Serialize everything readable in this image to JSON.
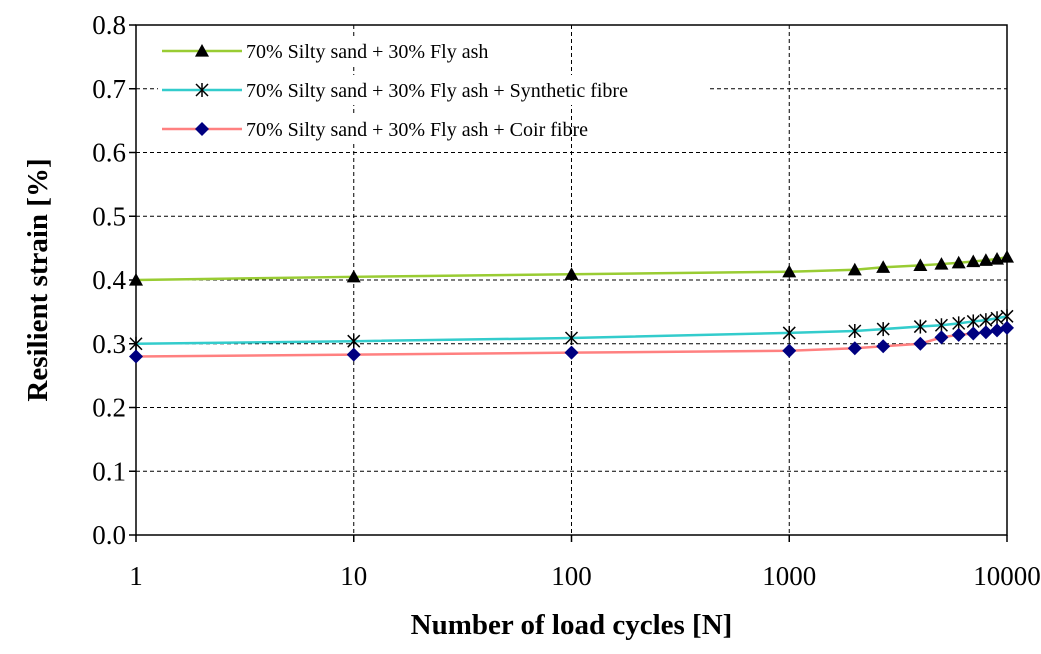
{
  "chart_data": {
    "type": "line",
    "xscale": "log",
    "xlabel": "Number of load cycles [N]",
    "ylabel": "Resilient strain [%]",
    "xlim": [
      1,
      10000
    ],
    "ylim": [
      0,
      0.8
    ],
    "grid": true,
    "legend_position": "top-left",
    "xticks": [
      1,
      10,
      100,
      1000,
      10000
    ],
    "xtick_labels": [
      "1",
      "10",
      "100",
      "1000",
      "10000"
    ],
    "yticks": [
      0,
      0.1,
      0.2,
      0.3,
      0.4,
      0.5,
      0.6,
      0.7,
      0.8
    ],
    "ytick_labels": [
      "0.0",
      "0.1",
      "0.2",
      "0.3",
      "0.4",
      "0.5",
      "0.6",
      "0.7",
      "0.8"
    ],
    "series": [
      {
        "name": "70% Silty sand + 30% Fly ash",
        "color": "#99cc33",
        "marker": "triangle",
        "x": [
          1,
          10,
          100,
          1000,
          2000,
          2700,
          4000,
          5000,
          6000,
          7000,
          8000,
          9000,
          10000
        ],
        "y": [
          0.4,
          0.405,
          0.409,
          0.413,
          0.416,
          0.42,
          0.423,
          0.425,
          0.427,
          0.429,
          0.431,
          0.433,
          0.436
        ]
      },
      {
        "name": "70% Silty sand + 30% Fly ash + Synthetic fibre",
        "color": "#33cccc",
        "marker": "asterisk",
        "x": [
          1,
          10,
          100,
          1000,
          2000,
          2700,
          4000,
          5000,
          6000,
          7000,
          8000,
          9000,
          10000
        ],
        "y": [
          0.3,
          0.304,
          0.309,
          0.317,
          0.32,
          0.323,
          0.327,
          0.329,
          0.332,
          0.335,
          0.337,
          0.34,
          0.343
        ]
      },
      {
        "name": "70% Silty sand + 30% Fly ash + Coir fibre",
        "color": "#ff8080",
        "marker": "diamond",
        "x": [
          1,
          10,
          100,
          1000,
          2000,
          2700,
          4000,
          5000,
          6000,
          7000,
          8000,
          9000,
          10000
        ],
        "y": [
          0.28,
          0.283,
          0.286,
          0.289,
          0.293,
          0.296,
          0.3,
          0.31,
          0.314,
          0.316,
          0.318,
          0.321,
          0.325
        ]
      }
    ]
  },
  "colors": {
    "marker_fill_triangle": "#000000",
    "marker_fill_diamond": "#000080",
    "grid": "#000000"
  }
}
